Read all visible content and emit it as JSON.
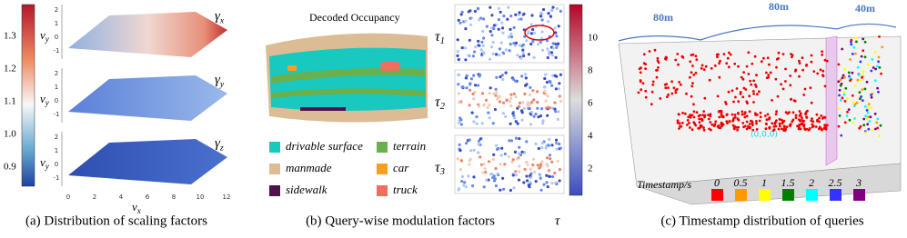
{
  "panel_a": {
    "colorbar_ticks": [
      "1.3",
      "1.2",
      "1.1",
      "1.0",
      "0.9"
    ],
    "y_label": "v",
    "y_label_sub": "y",
    "x_label": "v",
    "x_label_sub": "x",
    "y_ticks": [
      "2",
      "1",
      "0",
      "-1"
    ],
    "x_ticks": [
      "0",
      "2",
      "4",
      "6",
      "8",
      "10",
      "12"
    ],
    "plots": [
      {
        "symbol": "γ",
        "sub": "x"
      },
      {
        "symbol": "γ",
        "sub": "y"
      },
      {
        "symbol": "γ",
        "sub": "z"
      }
    ],
    "caption": "(a) Distribution of scaling factors"
  },
  "panel_b": {
    "title": "Decoded Occupancy",
    "legend": [
      {
        "label": "drivable surface",
        "color": "#19c9c0"
      },
      {
        "label": "terrain",
        "color": "#6ab04c"
      },
      {
        "label": "manmade",
        "color": "#dcbc94"
      },
      {
        "label": "car",
        "color": "#f5a020"
      },
      {
        "label": "sidewalk",
        "color": "#50104e"
      },
      {
        "label": "truck",
        "color": "#f06e5e"
      }
    ],
    "maps": [
      {
        "symbol": "τ",
        "sub": "1"
      },
      {
        "symbol": "τ",
        "sub": "2"
      },
      {
        "symbol": "τ",
        "sub": "3"
      }
    ],
    "colorbar_ticks": [
      "10",
      "8",
      "6",
      "4",
      "2"
    ],
    "caption": "(b) Query-wise modulation factors",
    "caption_symbol": "τ"
  },
  "panel_c": {
    "dims": [
      "80m",
      "80m",
      "40m"
    ],
    "origin": "(0,0,0)",
    "legend_title": "Timestamp/s",
    "timestamps": [
      {
        "label": "0",
        "color": "#ff0000"
      },
      {
        "label": "0.5",
        "color": "#ff9900"
      },
      {
        "label": "1",
        "color": "#ffff00"
      },
      {
        "label": "1.5",
        "color": "#008000"
      },
      {
        "label": "2",
        "color": "#00ffff"
      },
      {
        "label": "2.5",
        "color": "#3333ff"
      },
      {
        "label": "3",
        "color": "#800080"
      }
    ],
    "caption": "(c) Timestamp distribution of queries"
  }
}
